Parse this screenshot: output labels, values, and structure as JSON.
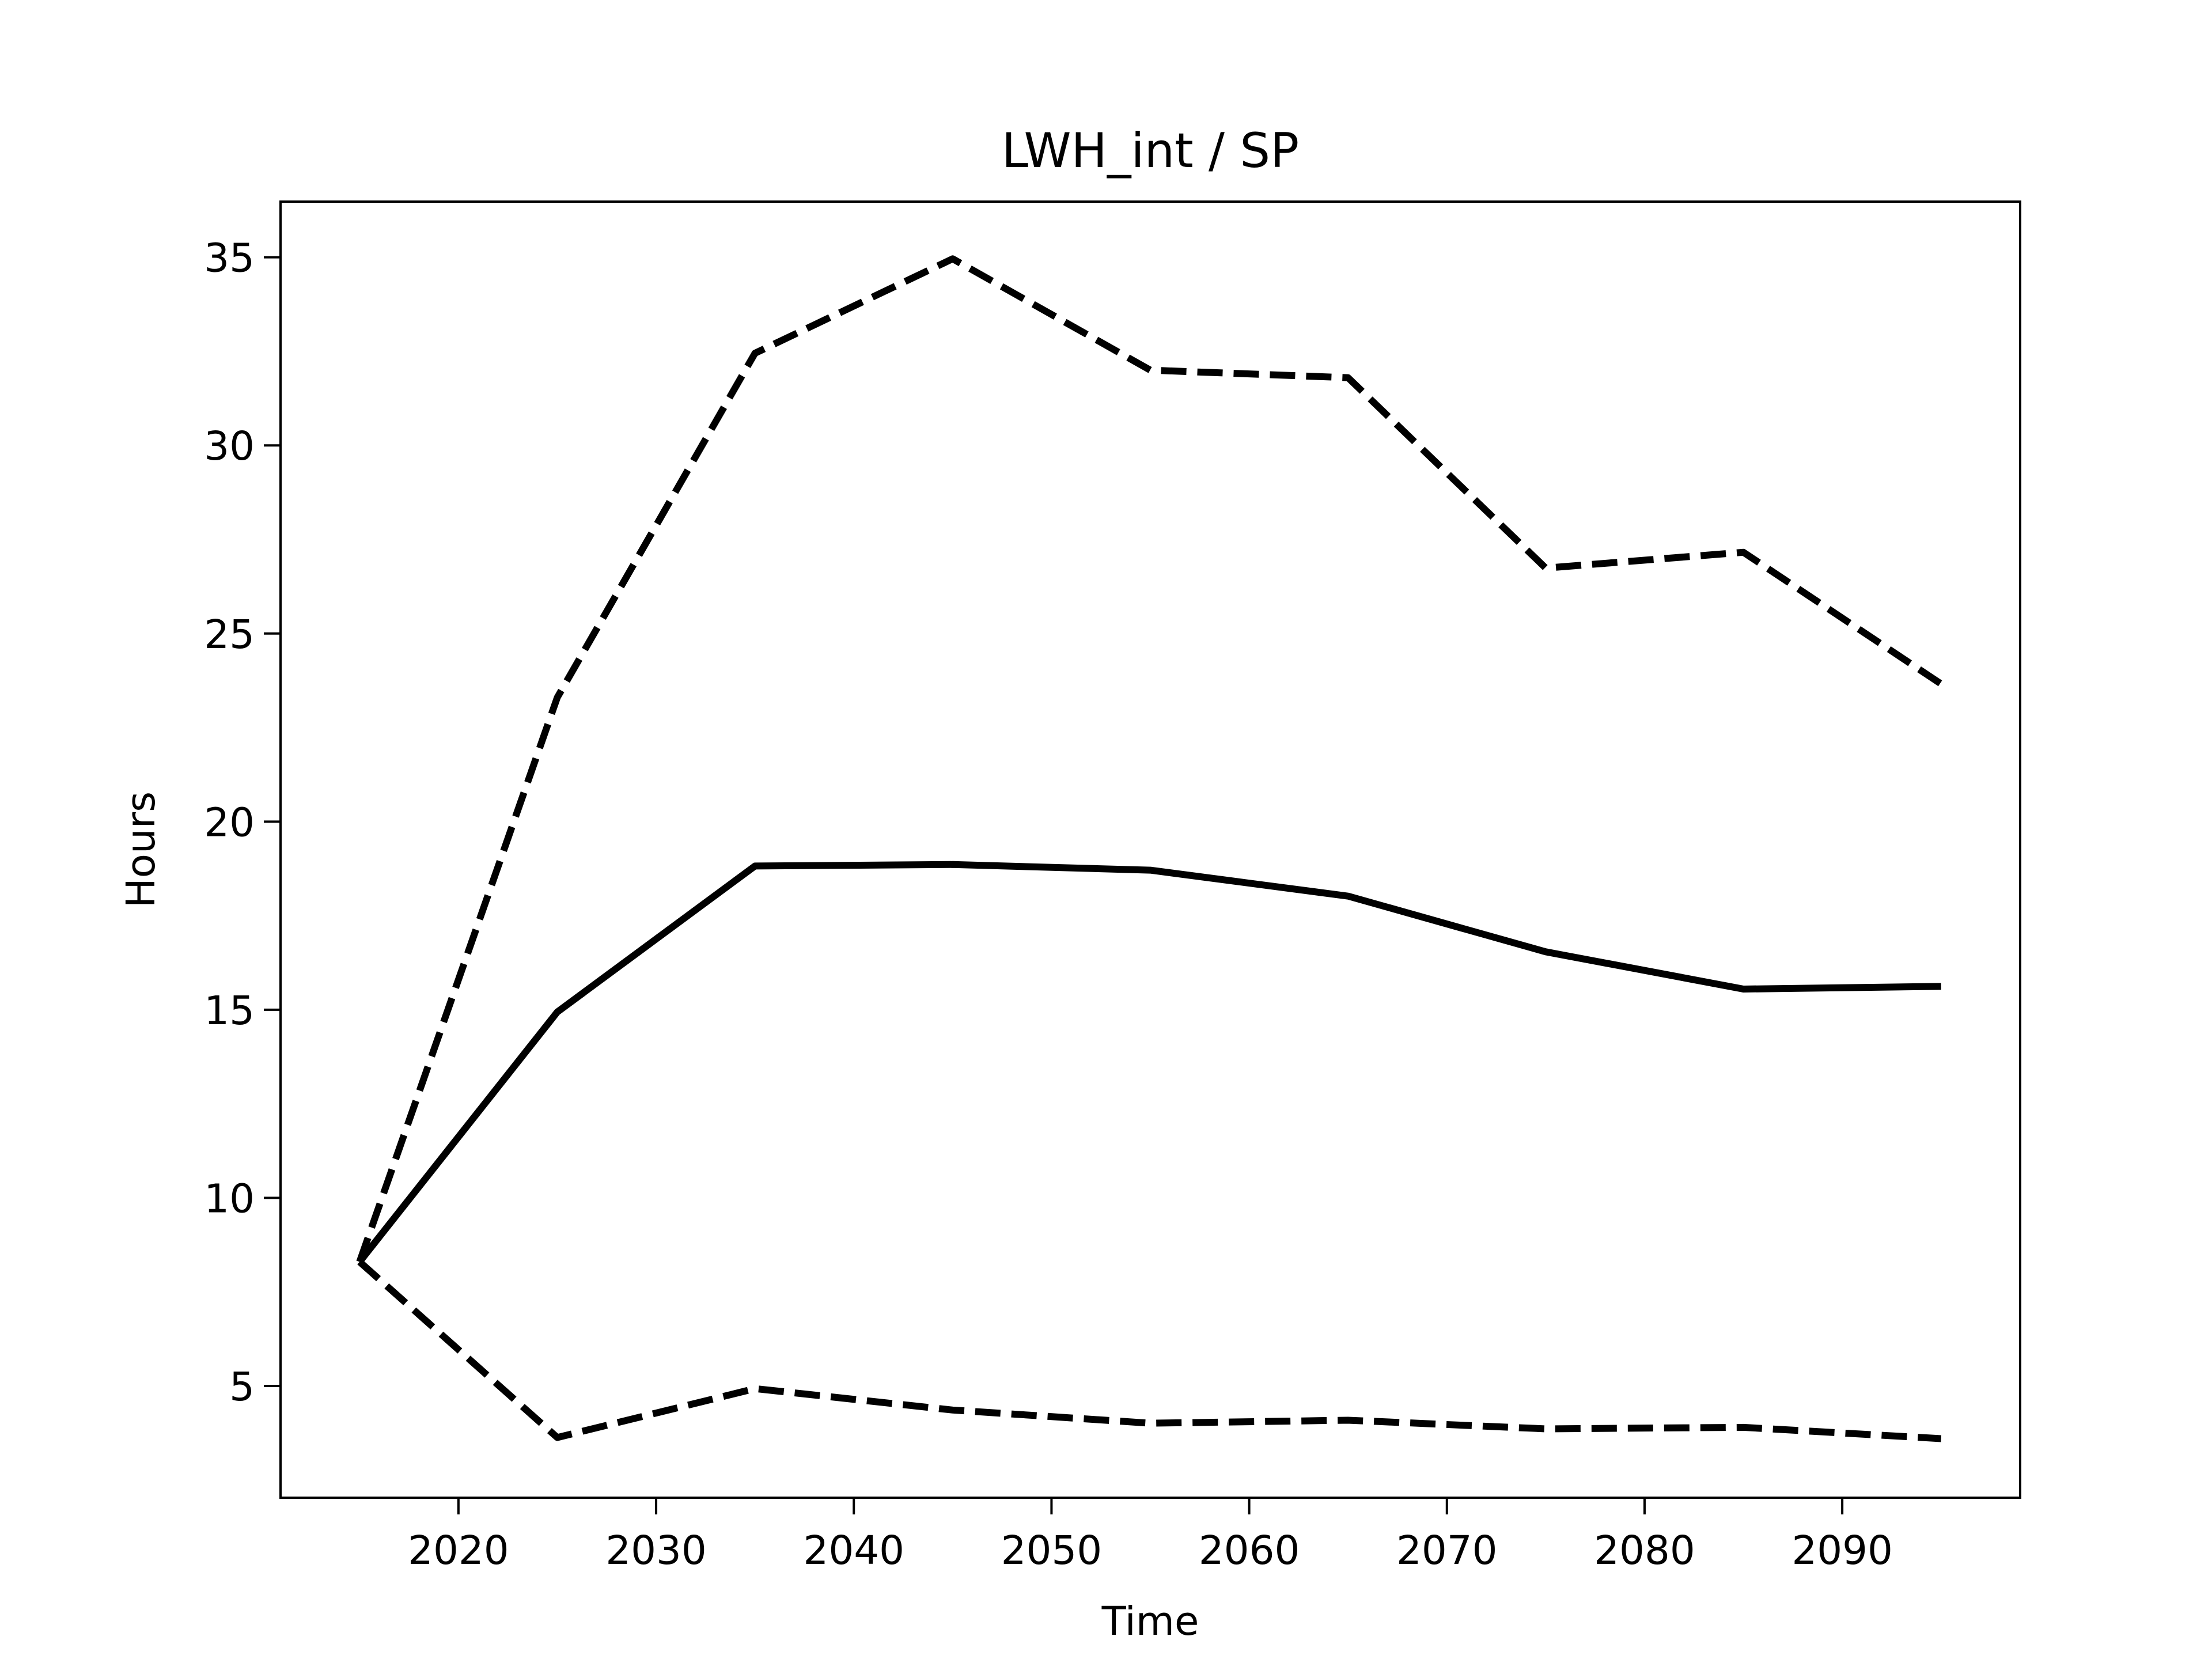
{
  "chart_data": {
    "type": "line",
    "title": "LWH_int / SP",
    "x_label": "Time",
    "y_label": "Hours",
    "x": [
      2015,
      2025,
      2035,
      2045,
      2055,
      2065,
      2075,
      2085,
      2095
    ],
    "series": [
      {
        "color": "#000000",
        "dashed": false,
        "values": [
          8.3,
          14.94,
          18.82,
          18.86,
          18.71,
          18.02,
          16.54,
          15.55,
          15.62
        ]
      },
      {
        "color": "#000000",
        "dashed": true,
        "values": [
          8.3,
          23.3,
          32.45,
          34.96,
          32.0,
          31.8,
          26.74,
          27.16,
          23.66
        ]
      },
      {
        "color": "#000000",
        "dashed": true,
        "values": [
          8.3,
          3.63,
          4.93,
          4.36,
          4.01,
          4.09,
          3.86,
          3.9,
          3.6
        ]
      }
    ],
    "xlim": [
      2011,
      2099
    ],
    "xticks": [
      2020,
      2030,
      2040,
      2050,
      2060,
      2070,
      2080,
      2090
    ],
    "ylim": [
      2.03,
      36.48
    ],
    "yticks": [
      5,
      10,
      15,
      20,
      25,
      30,
      35
    ],
    "grid": false
  }
}
